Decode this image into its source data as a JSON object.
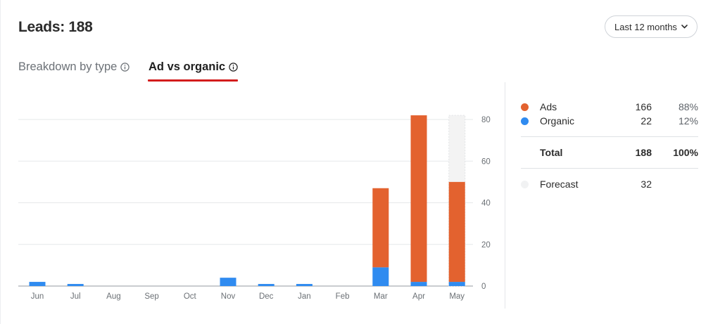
{
  "header": {
    "title": "Leads: 188",
    "range_label": "Last 12 months"
  },
  "tabs": [
    {
      "label": "Breakdown by type",
      "active": false
    },
    {
      "label": "Ad vs organic",
      "active": true
    }
  ],
  "colors": {
    "ads": "#e3622f",
    "organic": "#2f8bf0",
    "forecast": "#f3f3f3",
    "active_tab_underline": "#d31d1d"
  },
  "legend": {
    "rows": [
      {
        "name": "Ads",
        "value": "166",
        "percent": "88%"
      },
      {
        "name": "Organic",
        "value": "22",
        "percent": "12%"
      }
    ],
    "total": {
      "name": "Total",
      "value": "188",
      "percent": "100%"
    },
    "forecast": {
      "name": "Forecast",
      "value": "32"
    }
  },
  "chart_data": {
    "type": "bar",
    "stacked": true,
    "categories": [
      "Jun",
      "Jul",
      "Aug",
      "Sep",
      "Oct",
      "Nov",
      "Dec",
      "Jan",
      "Feb",
      "Mar",
      "Apr",
      "May"
    ],
    "series": [
      {
        "name": "Organic",
        "values": [
          2,
          1,
          0,
          0,
          0,
          4,
          1,
          1,
          0,
          9,
          2,
          2
        ]
      },
      {
        "name": "Ads",
        "values": [
          0,
          0,
          0,
          0,
          0,
          0,
          0,
          0,
          0,
          38,
          80,
          48
        ]
      }
    ],
    "forecast": {
      "category": "May",
      "value": 82
    },
    "y_ticks": [
      "0",
      "20",
      "40",
      "60",
      "80"
    ],
    "ylim": [
      0,
      90
    ],
    "y_axis_side": "right",
    "grid": true,
    "title": "",
    "xlabel": "",
    "ylabel": ""
  }
}
